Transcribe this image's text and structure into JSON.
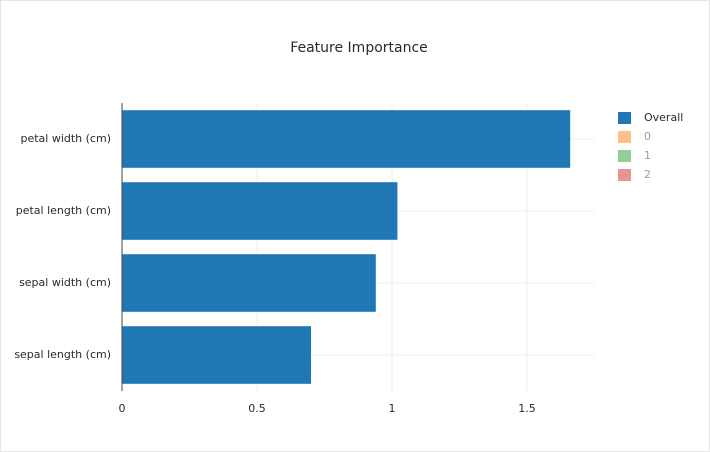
{
  "chart_data": {
    "type": "barh",
    "title": "Feature Importance",
    "categories": [
      "petal width (cm)",
      "petal length (cm)",
      "sepal width (cm)",
      "sepal length (cm)"
    ],
    "series": [
      {
        "name": "Overall",
        "color": "#1f77b4",
        "values": [
          1.66,
          1.02,
          0.94,
          0.7
        ]
      },
      {
        "name": "0",
        "color": "#ff7f0e",
        "visible": false
      },
      {
        "name": "1",
        "color": "#2ca02c",
        "visible": false
      },
      {
        "name": "2",
        "color": "#d62728",
        "visible": false
      }
    ],
    "xlim": [
      0,
      1.75
    ],
    "xticks": [
      0,
      0.5,
      1,
      1.5
    ],
    "grid": true,
    "legend": "right"
  }
}
